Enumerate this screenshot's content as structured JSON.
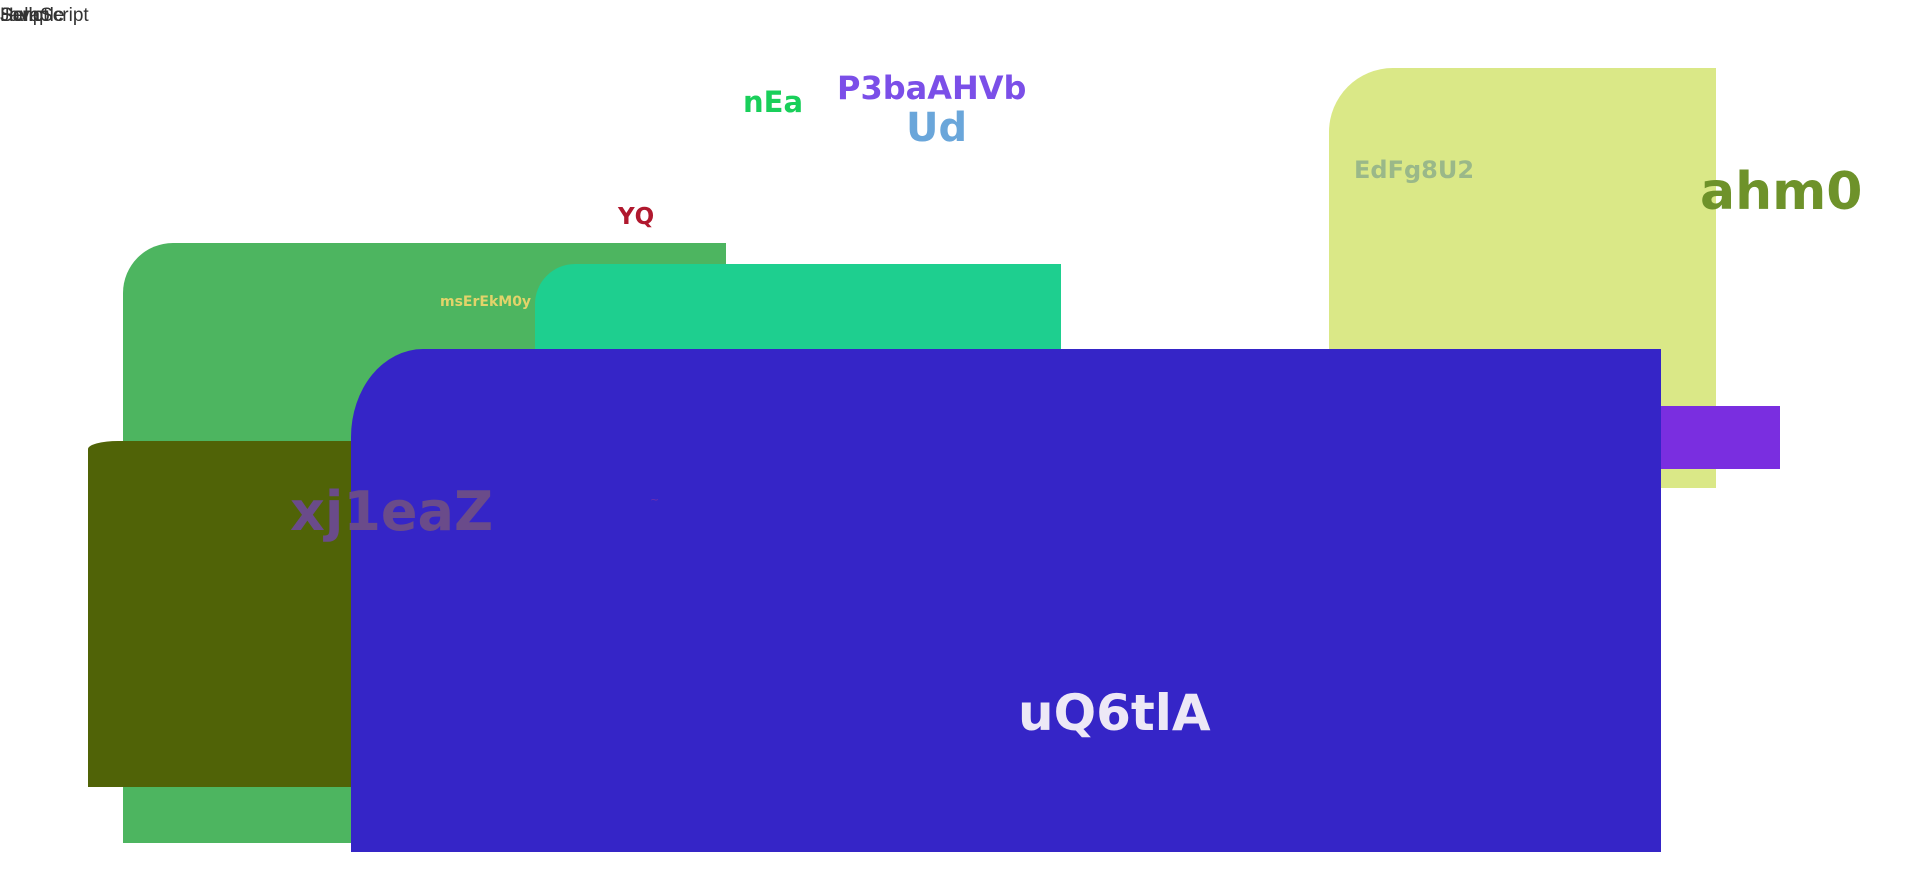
{
  "corner": {
    "layer_a": "Hello",
    "layer_b": "Sample",
    "layer_c": "Script",
    "layer_d": "JavaScript"
  },
  "labels": {
    "nEa": "nEa",
    "p3baAHVb": "P3baAHVb",
    "ud": "Ud",
    "yq": "YQ",
    "edfg": "EdFg8U2",
    "ahm": "ahm0",
    "ms": "msErEkM0y",
    "xj": "xj1eaZ",
    "tiny": "~",
    "uq": "uQ6tlA"
  },
  "colors": {
    "green_panel": "#4db560",
    "teal_panel": "#1ecf8f",
    "lime_panel": "#dae887",
    "violet_bar": "#7a2ee0",
    "olive_panel": "#506307",
    "blue_panel": "#3525c7"
  }
}
